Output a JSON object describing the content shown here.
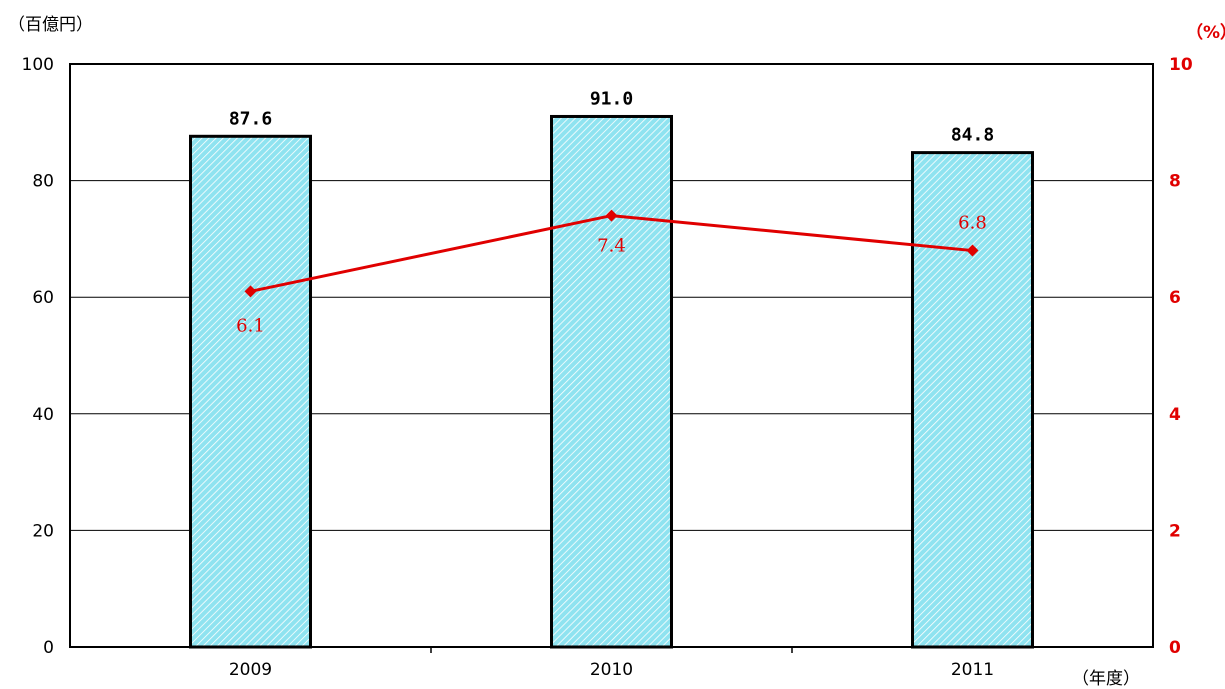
{
  "units": {
    "left": "（百億円）",
    "right": "（%）",
    "x": "（年度）"
  },
  "colors": {
    "bar_fill": "#8fe3f0",
    "bar_hatch": "#ffffff",
    "bar_stroke": "#000000",
    "line": "#e00000",
    "grid": "#000000"
  },
  "chart_data": {
    "type": "bar",
    "categories": [
      "2009",
      "2010",
      "2011"
    ],
    "series": [
      {
        "axis": "left",
        "type": "bar",
        "values": [
          87.6,
          91.0,
          84.8
        ],
        "labels": [
          "87.6",
          "91.0",
          "84.8"
        ]
      },
      {
        "axis": "right",
        "type": "line",
        "values": [
          6.1,
          7.4,
          6.8
        ],
        "labels": [
          "6.1",
          "7.4",
          "6.8"
        ]
      }
    ],
    "ylim": [
      0,
      100
    ],
    "y2lim": [
      0,
      10
    ],
    "yticks": [
      "0",
      "20",
      "40",
      "60",
      "80",
      "100"
    ],
    "y2ticks": [
      "0",
      "2",
      "4",
      "6",
      "8",
      "10"
    ],
    "grid": true
  }
}
